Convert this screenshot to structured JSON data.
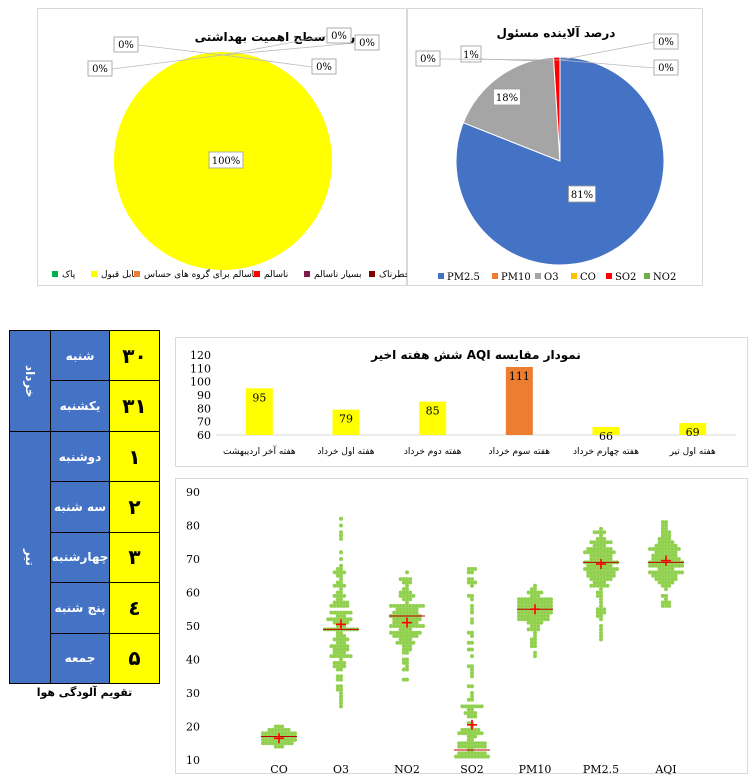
{
  "chart_data": [
    {
      "type": "pie",
      "title": "درصد سطح اهمیت بهداشتی",
      "slices": [
        {
          "label": "پاک",
          "value": 0,
          "pct_label": "0%",
          "color": "#00b050"
        },
        {
          "label": "قابل قبول",
          "value": 100,
          "pct_label": "100%",
          "color": "#ffff00"
        },
        {
          "label": "ناسالم برای گروه های حساس",
          "value": 0,
          "pct_label": "0%",
          "color": "#ed7d31"
        },
        {
          "label": "ناسالم",
          "value": 0,
          "pct_label": "0%",
          "color": "#ff0000"
        },
        {
          "label": "بسیار ناسالم",
          "value": 0,
          "pct_label": "0%",
          "color": "#7f1b4a"
        },
        {
          "label": "خطرناک",
          "value": 0,
          "pct_label": "0%",
          "color": "#7f0000"
        }
      ],
      "legend_position": "bottom"
    },
    {
      "type": "pie",
      "title": "درصد آلاینده مسئول",
      "slices": [
        {
          "label": "PM2.5",
          "value": 81,
          "pct_label": "81%",
          "color": "#4472c4"
        },
        {
          "label": "PM10",
          "value": 0,
          "pct_label": "0%",
          "color": "#ed7d31"
        },
        {
          "label": "O3",
          "value": 18,
          "pct_label": "18%",
          "color": "#a5a5a5"
        },
        {
          "label": "CO",
          "value": 0,
          "pct_label": "0%",
          "color": "#ffc000"
        },
        {
          "label": "SO2",
          "value": 1,
          "pct_label": "1%",
          "color": "#ff0000"
        },
        {
          "label": "NO2",
          "value": 0,
          "pct_label": "0%",
          "color": "#70ad47"
        }
      ],
      "legend_position": "bottom"
    },
    {
      "type": "bar",
      "title": "نمودار مقایسه AQI شش هفته اخیر",
      "categories": [
        "هفته آخر اردیبهشت",
        "هفته اول خرداد",
        "هفته دوم خرداد",
        "هفته سوم خرداد",
        "هفته چهارم خرداد",
        "هفته اول تیر"
      ],
      "values": [
        95,
        79,
        85,
        111,
        66,
        69
      ],
      "colors": [
        "#ffff00",
        "#ffff00",
        "#ffff00",
        "#ed7d31",
        "#ffff00",
        "#ffff00"
      ],
      "yticks": [
        60,
        70,
        80,
        90,
        100,
        110,
        120
      ],
      "ylim": [
        60,
        120
      ]
    },
    {
      "type": "scatter",
      "subtype": "beeswarm",
      "categories": [
        "CO",
        "O3",
        "NO2",
        "SO2",
        "PM10",
        "PM2.5",
        "AQI"
      ],
      "means": [
        16.5,
        50.5,
        51,
        20.5,
        55,
        68.5,
        69.5
      ],
      "medians": [
        17,
        49,
        53,
        13,
        55,
        69,
        69
      ],
      "ranges": [
        [
          14,
          20
        ],
        [
          25,
          83
        ],
        [
          34,
          66
        ],
        [
          11,
          67
        ],
        [
          41,
          64
        ],
        [
          46,
          80
        ],
        [
          55,
          83
        ]
      ],
      "ylim": [
        10,
        90
      ],
      "yticks": [
        10,
        20,
        30,
        40,
        50,
        60,
        70,
        80,
        90
      ],
      "point_color": "#92d050",
      "mean_marker_color": "#ff0000",
      "median_line_color": "#c00000"
    }
  ],
  "calendar": {
    "caption": "تقویم آلودگی هوا",
    "months": [
      {
        "name": "خرداد",
        "rows": 2
      },
      {
        "name": "تیر",
        "rows": 5
      }
    ],
    "rows": [
      {
        "day": "شنبه",
        "num": "۳۰"
      },
      {
        "day": "یکشنبه",
        "num": "۳۱"
      },
      {
        "day": "دوشنبه",
        "num": "۱"
      },
      {
        "day": "سه شنبه",
        "num": "۲"
      },
      {
        "day": "چهارشنبه",
        "num": "۳"
      },
      {
        "day": "پنج شنبه",
        "num": "٤"
      },
      {
        "day": "جمعه",
        "num": "۵"
      }
    ],
    "row_color": "#4472c4",
    "num_color": "#ffff00"
  }
}
